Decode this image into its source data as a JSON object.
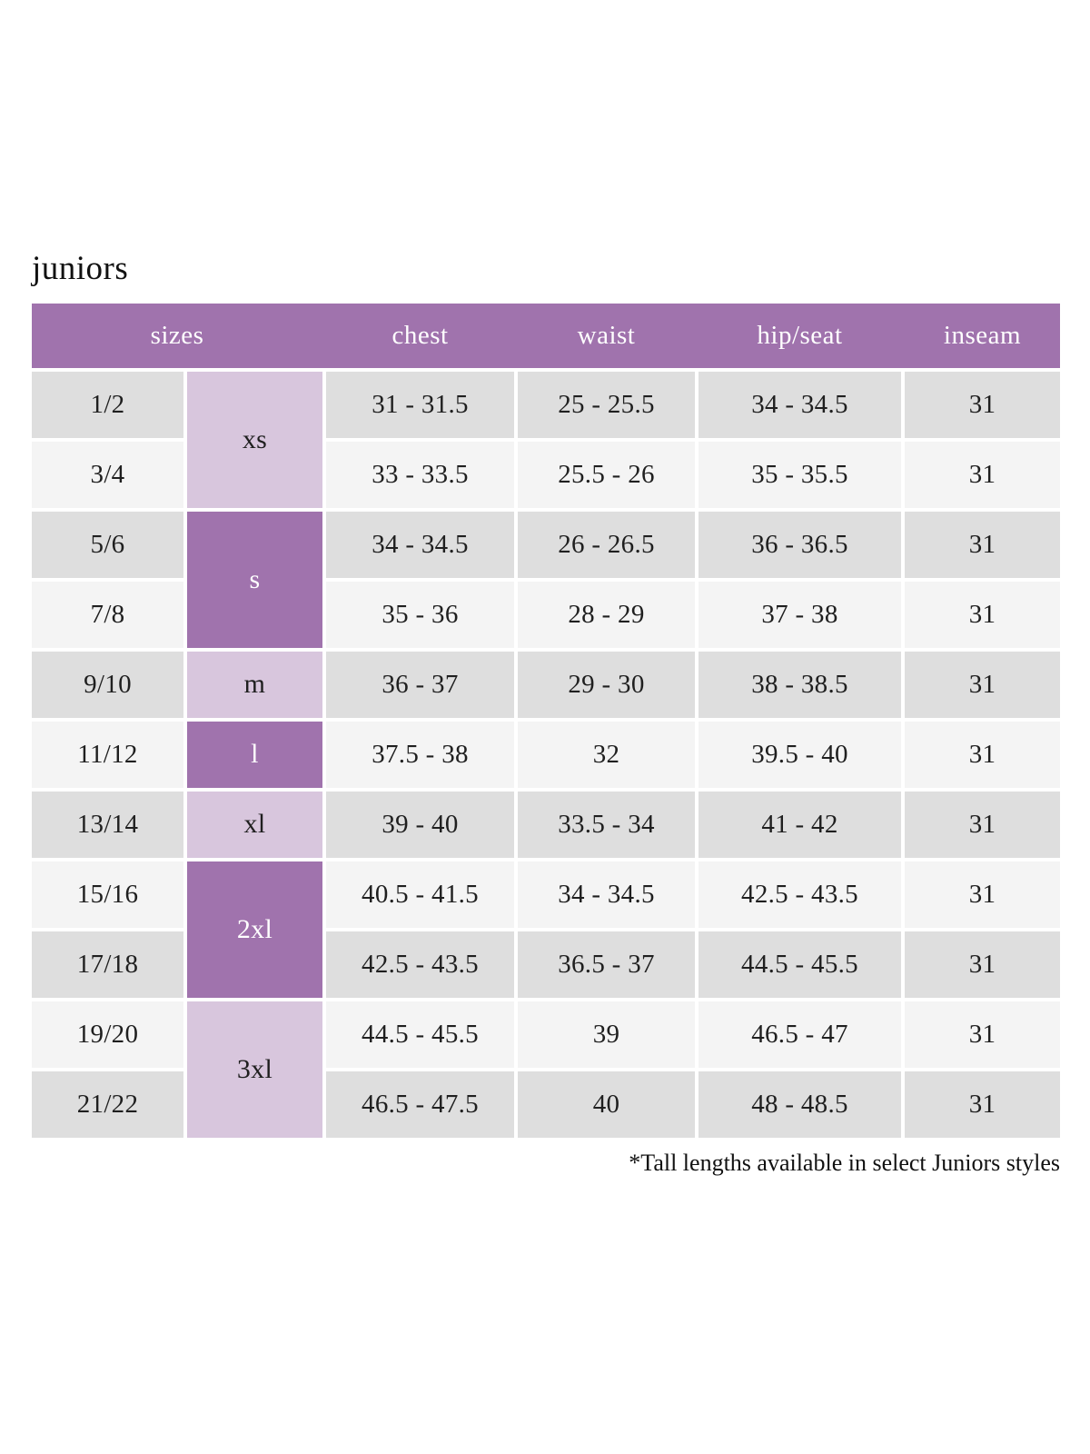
{
  "title": "juniors",
  "footnote": "*Tall lengths available in select Juniors styles",
  "colors": {
    "header_bg": "#a073ad",
    "header_text": "#ffffff",
    "size_group_dark_bg": "#a073ad",
    "size_group_light_bg": "#d8c6dd",
    "row_gray": "#dedede",
    "row_light": "#f4f4f4",
    "text": "#1f1f1f"
  },
  "chart_data": {
    "type": "table",
    "title": "juniors",
    "columns": [
      "sizes",
      "chest",
      "waist",
      "hip/seat",
      "inseam"
    ],
    "size_groups": [
      {
        "label": "xs",
        "rows": 2,
        "shade": "light"
      },
      {
        "label": "s",
        "rows": 2,
        "shade": "dark"
      },
      {
        "label": "m",
        "rows": 1,
        "shade": "light"
      },
      {
        "label": "l",
        "rows": 1,
        "shade": "dark"
      },
      {
        "label": "xl",
        "rows": 1,
        "shade": "light"
      },
      {
        "label": "2xl",
        "rows": 2,
        "shade": "dark"
      },
      {
        "label": "3xl",
        "rows": 2,
        "shade": "light"
      }
    ],
    "rows": [
      {
        "size": "1/2",
        "chest": "31 - 31.5",
        "waist": "25 - 25.5",
        "hip_seat": "34 - 34.5",
        "inseam": "31"
      },
      {
        "size": "3/4",
        "chest": "33 - 33.5",
        "waist": "25.5 - 26",
        "hip_seat": "35 - 35.5",
        "inseam": "31"
      },
      {
        "size": "5/6",
        "chest": "34 - 34.5",
        "waist": "26 - 26.5",
        "hip_seat": "36 - 36.5",
        "inseam": "31"
      },
      {
        "size": "7/8",
        "chest": "35 - 36",
        "waist": "28 - 29",
        "hip_seat": "37 - 38",
        "inseam": "31"
      },
      {
        "size": "9/10",
        "chest": "36 - 37",
        "waist": "29 - 30",
        "hip_seat": "38 - 38.5",
        "inseam": "31"
      },
      {
        "size": "11/12",
        "chest": "37.5 - 38",
        "waist": "32",
        "hip_seat": "39.5 - 40",
        "inseam": "31"
      },
      {
        "size": "13/14",
        "chest": "39 - 40",
        "waist": "33.5 - 34",
        "hip_seat": "41 - 42",
        "inseam": "31"
      },
      {
        "size": "15/16",
        "chest": "40.5 - 41.5",
        "waist": "34 - 34.5",
        "hip_seat": "42.5 - 43.5",
        "inseam": "31"
      },
      {
        "size": "17/18",
        "chest": "42.5 - 43.5",
        "waist": "36.5 - 37",
        "hip_seat": "44.5 - 45.5",
        "inseam": "31"
      },
      {
        "size": "19/20",
        "chest": "44.5 - 45.5",
        "waist": "39",
        "hip_seat": "46.5 - 47",
        "inseam": "31"
      },
      {
        "size": "21/22",
        "chest": "46.5 - 47.5",
        "waist": "40",
        "hip_seat": "48 - 48.5",
        "inseam": "31"
      }
    ],
    "footnote": "*Tall lengths available in select Juniors styles",
    "layout_hints": {
      "row_striping": "gray/light alternating starting gray",
      "header_position": "top"
    }
  }
}
